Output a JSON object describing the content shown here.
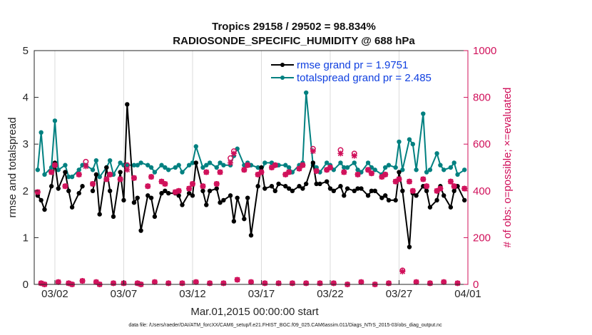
{
  "chart_data": {
    "type": "line",
    "title_line1": "Tropics 29158 / 29502 = 98.834%",
    "title_line2": "RADIOSONDE_SPECIFIC_HUMIDITY @ 688 hPa",
    "xlabel": "Mar.01,2015 00:00:00 start",
    "ylabel_left": "rmse and totalspread",
    "ylabel_right": "# of obs: o=possible; ×=evaluated",
    "ylim_left": [
      0,
      5
    ],
    "ylim_right": [
      0,
      1000
    ],
    "xlim": [
      0.5,
      32.0
    ],
    "xticks": [
      2,
      7,
      12,
      17,
      22,
      27,
      32
    ],
    "xtick_labels": [
      "03/02",
      "03/07",
      "03/12",
      "03/17",
      "03/22",
      "03/27",
      "04/01"
    ],
    "yticks_left": [
      "0",
      "1",
      "2",
      "3",
      "4",
      "5"
    ],
    "yticks_right": [
      "0",
      "200",
      "400",
      "600",
      "800",
      "1000"
    ],
    "legend": {
      "rmse_label": "rmse grand pr = 1.9751",
      "spread_label": "totalspread grand pr = 2.485",
      "position": "top-right"
    },
    "footnote": "data file: /Users/raeder/DAI/ATM_forcXX/CAM6_setup/f.e21.FHIST_BGC.f09_025.CAM6assim.011/Diags_NTrS_2015-03/obs_diag_output.nc",
    "colors": {
      "rmse": "#000000",
      "spread": "#008080",
      "obs": "#d0105a"
    },
    "x": [
      0.75,
      1.0,
      1.25,
      1.75,
      2.0,
      2.25,
      2.75,
      3.0,
      3.25,
      3.75,
      4.0,
      4.25,
      4.75,
      5.0,
      5.25,
      5.75,
      6.0,
      6.25,
      6.75,
      7.0,
      7.25,
      7.75,
      8.0,
      8.25,
      8.75,
      9.0,
      9.25,
      9.75,
      10.0,
      10.25,
      10.75,
      11.0,
      11.25,
      11.75,
      12.0,
      12.25,
      12.75,
      13.0,
      13.25,
      13.75,
      14.0,
      14.25,
      14.75,
      15.0,
      15.25,
      15.75,
      16.0,
      16.25,
      16.75,
      17.0,
      17.25,
      17.75,
      18.0,
      18.25,
      18.75,
      19.0,
      19.25,
      19.75,
      20.0,
      20.25,
      20.75,
      21.0,
      21.25,
      21.75,
      22.0,
      22.25,
      22.75,
      23.0,
      23.25,
      23.75,
      24.0,
      24.25,
      24.75,
      25.0,
      25.25,
      25.75,
      26.0,
      26.25,
      26.75,
      27.0,
      27.25,
      27.75,
      28.0,
      28.25,
      28.75,
      29.0,
      29.25,
      29.75,
      30.0,
      30.25,
      30.75,
      31.0,
      31.25,
      31.75
    ],
    "rmse": [
      1.9,
      1.8,
      1.6,
      2.1,
      2.6,
      2.05,
      2.4,
      2.0,
      1.65,
      1.95,
      2.1,
      null,
      2.0,
      2.35,
      1.5,
      2.5,
      2.0,
      1.45,
      2.4,
      1.8,
      3.85,
      1.75,
      1.85,
      1.15,
      1.9,
      1.85,
      1.45,
      1.95,
      2.0,
      1.95,
      1.95,
      1.9,
      1.7,
      1.95,
      1.9,
      2.6,
      2.0,
      1.7,
      2.0,
      2.05,
      1.75,
      1.8,
      1.9,
      1.35,
      1.85,
      1.4,
      1.85,
      1.05,
      2.1,
      2.5,
      2.05,
      2.1,
      2.0,
      2.15,
      2.1,
      2.05,
      2.0,
      2.1,
      2.05,
      2.15,
      2.6,
      2.15,
      2.15,
      2.2,
      2.05,
      2.0,
      2.1,
      1.9,
      2.05,
      2.0,
      2.05,
      2.05,
      1.9,
      2.0,
      2.0,
      1.85,
      1.9,
      1.8,
      1.8,
      2.4,
      2.0,
      0.8,
      1.95,
      1.9,
      2.1,
      2.0,
      1.65,
      1.8,
      2.1,
      1.9,
      1.65,
      2.0,
      2.1,
      1.8
    ],
    "spread": [
      2.45,
      3.25,
      2.35,
      2.5,
      3.5,
      2.45,
      2.55,
      2.3,
      2.3,
      2.45,
      2.55,
      2.55,
      2.45,
      2.65,
      2.3,
      2.5,
      2.65,
      2.35,
      2.6,
      2.55,
      2.55,
      2.55,
      2.55,
      2.6,
      2.55,
      2.5,
      2.4,
      2.55,
      2.5,
      2.45,
      2.5,
      2.55,
      2.4,
      2.55,
      2.6,
      2.95,
      2.5,
      2.55,
      2.6,
      2.5,
      2.6,
      2.55,
      2.55,
      2.75,
      2.9,
      2.55,
      2.6,
      2.55,
      2.5,
      2.4,
      2.6,
      2.6,
      2.55,
      2.55,
      2.55,
      2.5,
      2.4,
      2.55,
      2.6,
      4.1,
      2.55,
      2.5,
      2.4,
      2.6,
      2.55,
      2.45,
      2.6,
      2.5,
      2.5,
      2.6,
      2.45,
      2.4,
      2.6,
      2.5,
      2.45,
      2.35,
      2.5,
      2.55,
      2.5,
      3.05,
      2.45,
      3.1,
      3.0,
      2.45,
      3.65,
      2.4,
      2.45,
      2.8,
      2.55,
      2.45,
      2.5,
      2.6,
      2.35,
      2.45
    ],
    "obs_possible": [
      395,
      5,
      0,
      480,
      510,
      10,
      420,
      5,
      0,
      470,
      15,
      525,
      430,
      10,
      0,
      450,
      470,
      5,
      450,
      5,
      510,
      455,
      5,
      0,
      420,
      460,
      10,
      440,
      430,
      5,
      395,
      400,
      5,
      410,
      430,
      10,
      420,
      480,
      5,
      430,
      480,
      5,
      540,
      570,
      20,
      490,
      510,
      10,
      470,
      480,
      5,
      500,
      510,
      5,
      470,
      480,
      5,
      495,
      510,
      5,
      580,
      485,
      5,
      490,
      500,
      5,
      575,
      480,
      0,
      560,
      470,
      10,
      490,
      475,
      0,
      460,
      470,
      5,
      440,
      450,
      60,
      440,
      400,
      10,
      450,
      420,
      5,
      400,
      410,
      10,
      440,
      420,
      5,
      410
    ],
    "obs_evaluated": [
      395,
      5,
      0,
      480,
      510,
      10,
      420,
      5,
      0,
      470,
      15,
      505,
      430,
      10,
      0,
      450,
      470,
      5,
      450,
      5,
      490,
      455,
      5,
      0,
      420,
      460,
      10,
      440,
      430,
      5,
      395,
      400,
      5,
      410,
      430,
      10,
      420,
      480,
      5,
      430,
      480,
      5,
      520,
      560,
      20,
      490,
      510,
      10,
      470,
      480,
      5,
      500,
      510,
      5,
      470,
      480,
      5,
      495,
      510,
      5,
      570,
      485,
      5,
      490,
      500,
      5,
      560,
      480,
      0,
      550,
      470,
      10,
      490,
      475,
      0,
      460,
      470,
      5,
      440,
      450,
      55,
      440,
      400,
      10,
      450,
      420,
      5,
      400,
      410,
      10,
      440,
      420,
      5,
      410
    ]
  }
}
